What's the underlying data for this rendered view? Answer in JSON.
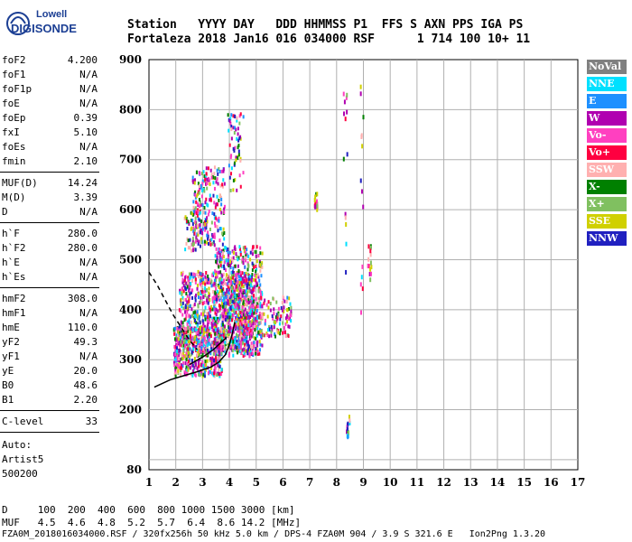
{
  "logo": {
    "line1": "Lowell",
    "line2": "DIGISONDE"
  },
  "header": {
    "line1": "Station   YYYY DAY   DDD HHMMSS P1  FFS S AXN PPS IGA PS",
    "line2": "Fortaleza 2018 Jan16 016 034000 RSF      1 714 100 10+ 11"
  },
  "params": [
    {
      "k": "foF2",
      "v": "4.200"
    },
    {
      "k": "foF1",
      "v": "N/A"
    },
    {
      "k": "foF1p",
      "v": "N/A"
    },
    {
      "k": "foE",
      "v": "N/A"
    },
    {
      "k": "foEp",
      "v": "0.39"
    },
    {
      "k": "fxI",
      "v": "5.10"
    },
    {
      "k": "foEs",
      "v": "N/A"
    },
    {
      "k": "fmin",
      "v": "2.10"
    },
    {
      "k": "MUF(D)",
      "v": "14.24"
    },
    {
      "k": "M(D)",
      "v": "3.39"
    },
    {
      "k": "D",
      "v": "N/A"
    },
    {
      "k": "h`F",
      "v": "280.0"
    },
    {
      "k": "h`F2",
      "v": "280.0"
    },
    {
      "k": "h`E",
      "v": "N/A"
    },
    {
      "k": "h`Es",
      "v": "N/A"
    },
    {
      "k": "hmF2",
      "v": "308.0"
    },
    {
      "k": "hmF1",
      "v": "N/A"
    },
    {
      "k": "hmE",
      "v": "110.0"
    },
    {
      "k": "yF2",
      "v": "49.3"
    },
    {
      "k": "yF1",
      "v": "N/A"
    },
    {
      "k": "yE",
      "v": "20.0"
    },
    {
      "k": "B0",
      "v": "48.6"
    },
    {
      "k": "B1",
      "v": "2.20"
    },
    {
      "k": "C-level",
      "v": "33"
    }
  ],
  "auto": {
    "line1": "Auto:",
    "line2": "Artist5",
    "line3": "500200"
  },
  "legend": [
    {
      "label": "NoVal",
      "color": "#808080"
    },
    {
      "label": "NNE",
      "color": "#00e0ff"
    },
    {
      "label": "E",
      "color": "#1e90ff"
    },
    {
      "label": "W",
      "color": "#b000b0"
    },
    {
      "label": "Vo-",
      "color": "#ff40c0"
    },
    {
      "label": "Vo+",
      "color": "#ff0040"
    },
    {
      "label": "SSW",
      "color": "#ffb0b0"
    },
    {
      "label": "X-",
      "color": "#008000"
    },
    {
      "label": "X+",
      "color": "#80c060"
    },
    {
      "label": "SSE",
      "color": "#d0d000"
    },
    {
      "label": "NNW",
      "color": "#2020c0"
    }
  ],
  "footer": {
    "line1": "D     100  200  400  600  800 1000 1500 3000 [km]",
    "line2": "MUF   4.5  4.6  4.8  5.2  5.7  6.4  8.6 14.2 [MHz]",
    "line3": "FZA0M_2018016034000.RSF / 320fx256h 50 kHz 5.0 km / DPS-4 FZA0M 904 / 3.9 S 321.6 E   Ion2Png 1.3.20"
  },
  "chart_data": {
    "type": "scatter",
    "xlim": [
      1,
      17
    ],
    "ylim": [
      80,
      900
    ],
    "xticks": [
      1,
      2,
      3,
      4,
      5,
      6,
      7,
      8,
      9,
      10,
      11,
      12,
      13,
      14,
      15,
      16,
      17
    ],
    "yticks": [
      80,
      200,
      300,
      400,
      500,
      600,
      700,
      800,
      900
    ],
    "grid": true,
    "trace_o": {
      "x": [
        1.2,
        1.8,
        2.3,
        2.8,
        3.3,
        3.6,
        3.85,
        4.0,
        4.1,
        4.2
      ],
      "y": [
        245,
        260,
        268,
        276,
        285,
        295,
        310,
        330,
        350,
        375
      ]
    },
    "trace_x": {
      "x": [
        2.5,
        3.0,
        3.4,
        3.7,
        3.9
      ],
      "y": [
        290,
        305,
        320,
        335,
        345
      ]
    },
    "profile": {
      "x": [
        1.0,
        1.3,
        1.6,
        1.9,
        2.2,
        2.5,
        2.8
      ],
      "y": [
        475,
        450,
        420,
        390,
        365,
        340,
        320
      ]
    }
  }
}
